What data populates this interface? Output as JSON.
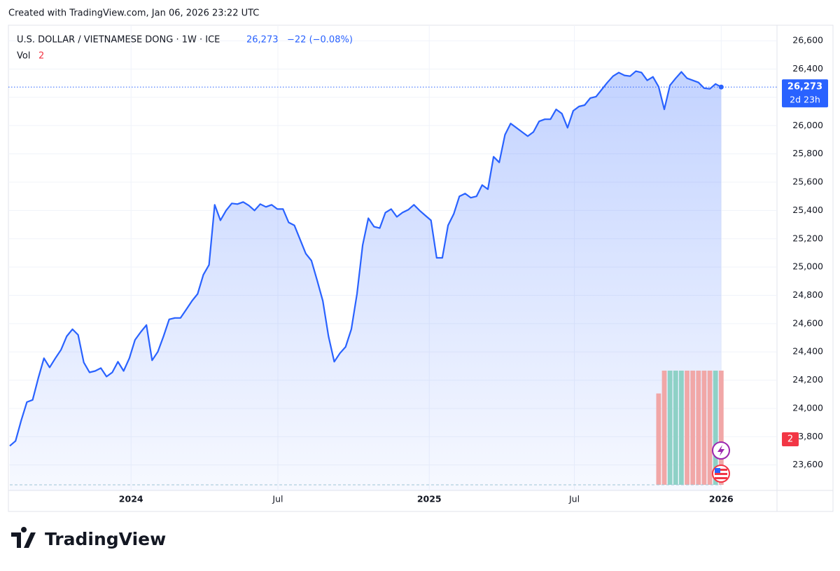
{
  "header": {
    "credit": "Created with TradingView.com, Jan 06, 2026 23:22 UTC",
    "logo": "TradingView"
  },
  "chart_data": {
    "type": "area",
    "symbol": "U.S. DOLLAR / VIETNAMESE DONG · 1W · ICE",
    "last_label": "26,273",
    "change": "−22 (−0.08%)",
    "countdown": "2d 23h",
    "color": "#2962ff",
    "values": [
      23735,
      23770,
      23915,
      24045,
      24060,
      24215,
      24355,
      24290,
      24355,
      24415,
      24510,
      24560,
      24520,
      24325,
      24255,
      24265,
      24285,
      24225,
      24255,
      24330,
      24265,
      24355,
      24485,
      24540,
      24590,
      24340,
      24400,
      24510,
      24630,
      24640,
      24640,
      24700,
      24760,
      24810,
      24945,
      25015,
      25440,
      25330,
      25400,
      25450,
      25445,
      25460,
      25435,
      25400,
      25445,
      25425,
      25440,
      25410,
      25410,
      25315,
      25295,
      25195,
      25095,
      25045,
      24905,
      24760,
      24510,
      24330,
      24390,
      24435,
      24560,
      24810,
      25155,
      25345,
      25285,
      25275,
      25385,
      25410,
      25355,
      25385,
      25405,
      25440,
      25400,
      25365,
      25330,
      25065,
      25065,
      25295,
      25375,
      25500,
      25520,
      25490,
      25500,
      25580,
      25550,
      25780,
      25740,
      25935,
      26015,
      25985,
      25955,
      25925,
      25955,
      26030,
      26045,
      26045,
      26115,
      26085,
      25985,
      26105,
      26135,
      26145,
      26195,
      26205,
      26255,
      26305,
      26350,
      26375,
      26355,
      26350,
      26385,
      26375,
      26320,
      26345,
      26275,
      26115,
      26285,
      26335,
      26380,
      26335,
      26320,
      26305,
      26265,
      26260,
      26295,
      26273
    ],
    "xlim": [
      -0.25,
      134.8
    ],
    "xticks": [
      {
        "value": 21.3,
        "label": "2024"
      },
      {
        "value": 47.1,
        "label": "Jul"
      },
      {
        "value": 73.7,
        "label": "2025"
      },
      {
        "value": 99.2,
        "label": "Jul"
      },
      {
        "value": 125,
        "label": "2026"
      }
    ],
    "ylim": [
      23420,
      26710
    ],
    "yticks": [
      {
        "value": 23600,
        "label": "23,600"
      },
      {
        "value": 23800,
        "label": "23,800"
      },
      {
        "value": 24000,
        "label": "24,000"
      },
      {
        "value": 24200,
        "label": "24,200"
      },
      {
        "value": 24400,
        "label": "24,400"
      },
      {
        "value": 24600,
        "label": "24,600"
      },
      {
        "value": 24800,
        "label": "24,800"
      },
      {
        "value": 25000,
        "label": "25,000"
      },
      {
        "value": 25200,
        "label": "25,200"
      },
      {
        "value": 25400,
        "label": "25,400"
      },
      {
        "value": 25600,
        "label": "25,600"
      },
      {
        "value": 25800,
        "label": "25,800"
      },
      {
        "value": 26000,
        "label": "26,000"
      },
      {
        "value": 26200,
        "label": "26,200"
      },
      {
        "value": 26400,
        "label": "26,400"
      },
      {
        "value": 26600,
        "label": "26,600"
      }
    ],
    "grid": true,
    "volume": {
      "label": "Vol",
      "up_color": "#8ed1c6",
      "down_color": "#f1a7a7",
      "ylim": [
        0,
        2
      ],
      "values": [
        null,
        null,
        null,
        null,
        null,
        null,
        null,
        null,
        null,
        null,
        null,
        null,
        null,
        null,
        null,
        null,
        null,
        null,
        null,
        null,
        null,
        null,
        null,
        null,
        null,
        null,
        null,
        null,
        null,
        null,
        null,
        null,
        null,
        null,
        null,
        null,
        null,
        null,
        null,
        null,
        null,
        null,
        null,
        null,
        null,
        null,
        null,
        null,
        null,
        null,
        null,
        null,
        null,
        null,
        null,
        null,
        null,
        null,
        null,
        null,
        null,
        null,
        null,
        null,
        null,
        null,
        null,
        null,
        null,
        null,
        null,
        null,
        null,
        null,
        null,
        null,
        null,
        null,
        null,
        null,
        null,
        null,
        null,
        null,
        null,
        null,
        null,
        null,
        null,
        null,
        null,
        null,
        null,
        null,
        null,
        null,
        null,
        null,
        null,
        null,
        null,
        null,
        null,
        null,
        null,
        null,
        null,
        null,
        null,
        null,
        null,
        null,
        null,
        null,
        1.6,
        2,
        2,
        2,
        2,
        2,
        2,
        2,
        2,
        2,
        2,
        2
      ]
    }
  }
}
